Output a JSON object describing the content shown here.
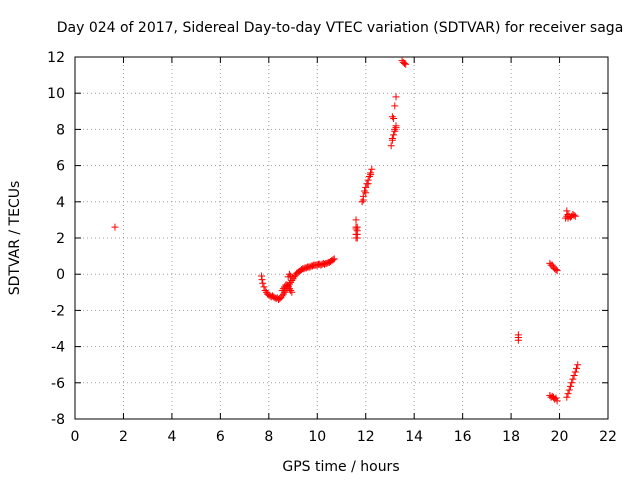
{
  "chart_data": {
    "type": "scatter",
    "title": "Day 024 of 2017, Sidereal Day-to-day VTEC variation (SDTVAR) for receiver saga",
    "xlabel": "GPS time / hours",
    "ylabel": "SDTVAR / TECUs",
    "xlim": [
      0,
      22
    ],
    "ylim": [
      -8,
      12
    ],
    "xticks": [
      0,
      2,
      4,
      6,
      8,
      10,
      12,
      14,
      16,
      18,
      20,
      22
    ],
    "yticks": [
      -8,
      -6,
      -4,
      -2,
      0,
      2,
      4,
      6,
      8,
      10,
      12
    ],
    "grid": true,
    "marker": "+",
    "color": "#ff0000",
    "series": [
      {
        "name": "SDTVAR",
        "x": [
          1.65,
          7.7,
          7.72,
          7.75,
          7.8,
          7.85,
          7.9,
          7.95,
          8.0,
          8.05,
          8.1,
          8.15,
          8.2,
          8.25,
          8.3,
          8.35,
          8.4,
          8.45,
          8.5,
          8.55,
          8.6,
          8.65,
          8.7,
          8.75,
          8.8,
          8.85,
          8.9,
          8.95,
          9.0,
          9.05,
          9.1,
          9.15,
          9.2,
          9.25,
          9.3,
          9.35,
          9.4,
          9.45,
          9.5,
          9.55,
          9.6,
          9.65,
          9.7,
          9.75,
          9.8,
          9.85,
          9.9,
          9.95,
          10.0,
          10.05,
          10.1,
          10.15,
          10.2,
          10.25,
          10.3,
          10.35,
          10.4,
          10.45,
          10.5,
          10.55,
          10.6,
          10.65,
          10.7,
          8.55,
          8.6,
          8.65,
          8.7,
          8.75,
          8.8,
          8.85,
          8.9,
          8.95,
          8.8,
          8.85,
          8.9,
          11.6,
          11.6,
          11.6,
          11.6,
          11.6,
          11.65,
          11.65,
          11.65,
          11.65,
          11.85,
          11.9,
          11.95,
          12.0,
          12.05,
          12.1,
          12.15,
          12.2,
          12.25,
          11.9,
          12.0,
          12.1,
          12.2,
          13.05,
          13.1,
          13.15,
          13.2,
          13.25,
          13.1,
          13.2,
          13.25,
          13.15,
          13.1,
          13.2,
          13.25,
          13.5,
          13.55,
          13.6,
          13.65,
          18.3,
          18.3,
          18.3,
          19.6,
          19.65,
          19.7,
          19.75,
          19.8,
          19.85,
          19.9,
          19.6,
          19.65,
          19.7,
          19.75,
          19.8,
          19.85,
          19.9,
          20.25,
          20.3,
          20.35,
          20.4,
          20.45,
          20.5,
          20.55,
          20.6,
          20.65,
          20.3,
          20.35,
          20.3,
          20.35,
          20.4,
          20.45,
          20.5,
          20.55,
          20.6,
          20.65,
          20.7,
          20.75
        ],
        "y": [
          2.6,
          -0.1,
          -0.3,
          -0.5,
          -0.7,
          -0.9,
          -1.0,
          -1.1,
          -1.15,
          -1.2,
          -1.25,
          -1.2,
          -1.25,
          -1.3,
          -1.35,
          -1.3,
          -1.4,
          -1.35,
          -1.3,
          -1.2,
          -1.1,
          -1.0,
          -0.9,
          -0.8,
          -0.65,
          -0.55,
          -0.45,
          -0.35,
          -0.25,
          -0.15,
          -0.05,
          0.05,
          0.1,
          0.15,
          0.2,
          0.25,
          0.3,
          0.3,
          0.35,
          0.35,
          0.4,
          0.4,
          0.4,
          0.45,
          0.45,
          0.5,
          0.5,
          0.5,
          0.5,
          0.55,
          0.55,
          0.5,
          0.55,
          0.6,
          0.55,
          0.6,
          0.6,
          0.65,
          0.65,
          0.7,
          0.75,
          0.8,
          0.85,
          -0.9,
          -0.8,
          -0.7,
          -0.6,
          -0.6,
          -0.7,
          -0.8,
          -0.9,
          -1.0,
          -0.15,
          0.0,
          -0.1,
          3.0,
          2.6,
          2.5,
          2.2,
          2.0,
          2.6,
          2.4,
          2.2,
          2.0,
          4.0,
          4.3,
          4.6,
          4.8,
          5.0,
          5.2,
          5.4,
          5.6,
          5.8,
          4.1,
          4.5,
          5.0,
          5.5,
          7.1,
          7.4,
          7.7,
          8.0,
          8.2,
          7.5,
          7.9,
          8.1,
          8.6,
          8.7,
          9.3,
          9.8,
          11.8,
          11.7,
          11.65,
          11.6,
          -3.35,
          -3.5,
          -3.65,
          0.6,
          0.5,
          0.5,
          0.4,
          0.3,
          0.25,
          0.2,
          -6.7,
          -6.8,
          -6.75,
          -6.8,
          -6.9,
          -6.85,
          -7.0,
          3.1,
          3.2,
          3.1,
          3.2,
          3.15,
          3.2,
          3.3,
          3.25,
          3.2,
          3.5,
          3.3,
          -6.8,
          -6.6,
          -6.4,
          -6.2,
          -6.0,
          -5.8,
          -5.6,
          -5.4,
          -5.2,
          -5.0
        ]
      }
    ]
  }
}
